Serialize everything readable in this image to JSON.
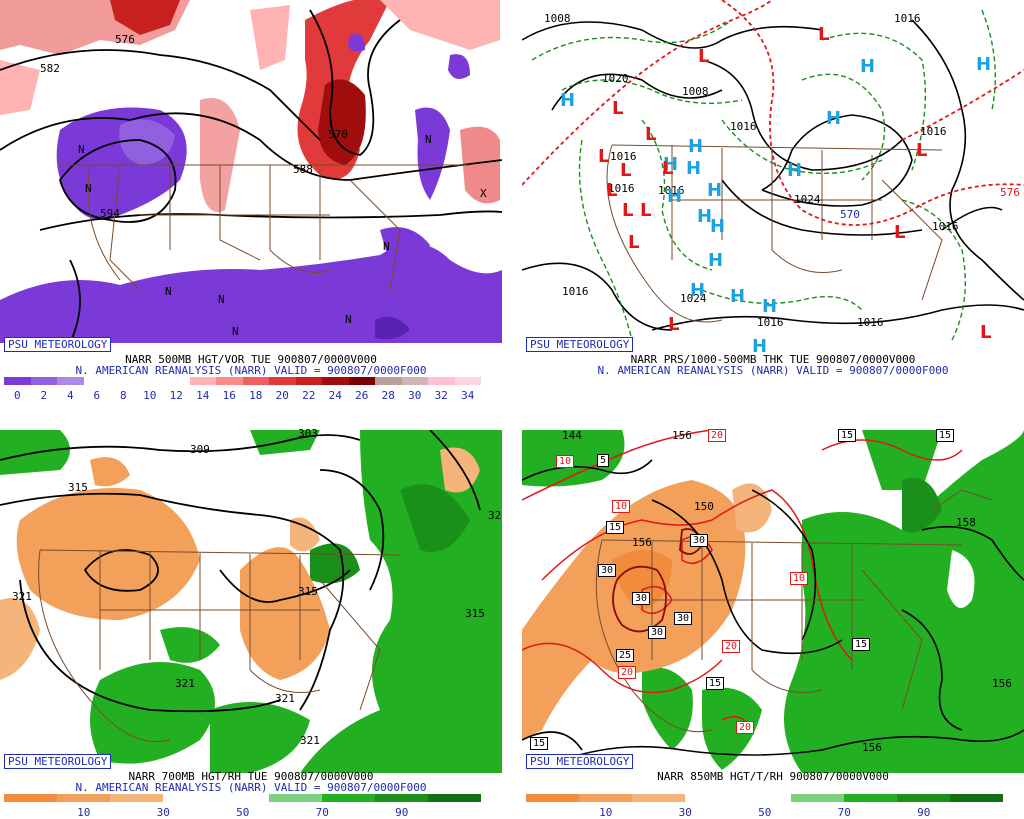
{
  "panels": [
    {
      "badge": "PSU METEOROLOGY",
      "caption1": "NARR 500MB HGT/VOR TUE 900807/0000V000",
      "caption2": "N. AMERICAN REANALYSIS (NARR) VALID = 900807/0000F000",
      "colorbar": [
        "#7b39d8",
        "#9060e0",
        "#a98ae8",
        "#ffffff",
        "#ffffff",
        "#ffffff",
        "#ffffff",
        "#ffb3b3",
        "#ff8a8a",
        "#f06060",
        "#e03a3a",
        "#c81f1f",
        "#a00d0d",
        "#7c0000",
        "#bba0a0",
        "#d3b4b4",
        "#ffc0d0",
        "#ffd6e0"
      ],
      "ticks": [
        "0",
        "2",
        "4",
        "6",
        "8",
        "10",
        "12",
        "14",
        "16",
        "18",
        "20",
        "22",
        "24",
        "26",
        "28",
        "30",
        "32",
        "34"
      ],
      "labels": [
        "582",
        "576",
        "570",
        "588",
        "594",
        "N",
        "N",
        "N",
        "N",
        "N",
        "N",
        "N",
        "X",
        "N"
      ]
    },
    {
      "badge": "PSU METEOROLOGY",
      "caption1": "NARR PRS/1000-500MB THK TUE 900807/0000V000",
      "caption2": "N. AMERICAN REANALYSIS (NARR) VALID = 900807/0000F000",
      "labels": [
        "1008",
        "1016",
        "1020",
        "1024",
        "1016",
        "1016",
        "1016",
        "1016",
        "1016",
        "1016",
        "1008",
        "570",
        "576",
        "1016",
        "1024",
        "1016",
        "1016"
      ],
      "highs": [
        "H",
        "H",
        "H",
        "H",
        "H",
        "H",
        "H",
        "H",
        "H",
        "H",
        "H",
        "H",
        "H",
        "H",
        "H",
        "H",
        "H"
      ],
      "lows": [
        "L",
        "L",
        "L",
        "L",
        "L",
        "L",
        "L",
        "L",
        "L",
        "L",
        "L",
        "L",
        "L",
        "L",
        "L"
      ]
    },
    {
      "badge": "PSU METEOROLOGY",
      "caption1": "NARR 700MB HGT/RH TUE 900807/0000V000",
      "caption2": "N. AMERICAN REANALYSIS (NARR) VALID = 900807/0000F000",
      "colorbar": [
        "#f08c3c",
        "#f2a05a",
        "#f5b57a",
        "#ffffff",
        "#ffffff",
        "#7fd07f",
        "#22b022",
        "#1a8f1a",
        "#137013"
      ],
      "ticks": [
        "10",
        "30",
        "50",
        "70",
        "90"
      ],
      "labels": [
        "303",
        "309",
        "315",
        "315",
        "321",
        "321",
        "321",
        "315",
        "321",
        "32"
      ]
    },
    {
      "badge": "PSU METEOROLOGY",
      "caption1": "NARR 850MB HGT/T/RH 900807/0000V000",
      "colorbar": [
        "#f08c3c",
        "#f2a05a",
        "#f5b57a",
        "#ffffff",
        "#ffffff",
        "#7fd07f",
        "#22b022",
        "#1a8f1a",
        "#137013"
      ],
      "ticks": [
        "10",
        "30",
        "50",
        "70",
        "90"
      ],
      "labels": [
        "144",
        "150",
        "156",
        "156",
        "156",
        "158",
        "156"
      ],
      "boxes": [
        "10",
        "5",
        "10",
        "15",
        "30",
        "30",
        "30",
        "30",
        "30",
        "25",
        "20",
        "20",
        "15",
        "15",
        "15",
        "15",
        "20",
        "15",
        "10",
        "20"
      ]
    }
  ]
}
